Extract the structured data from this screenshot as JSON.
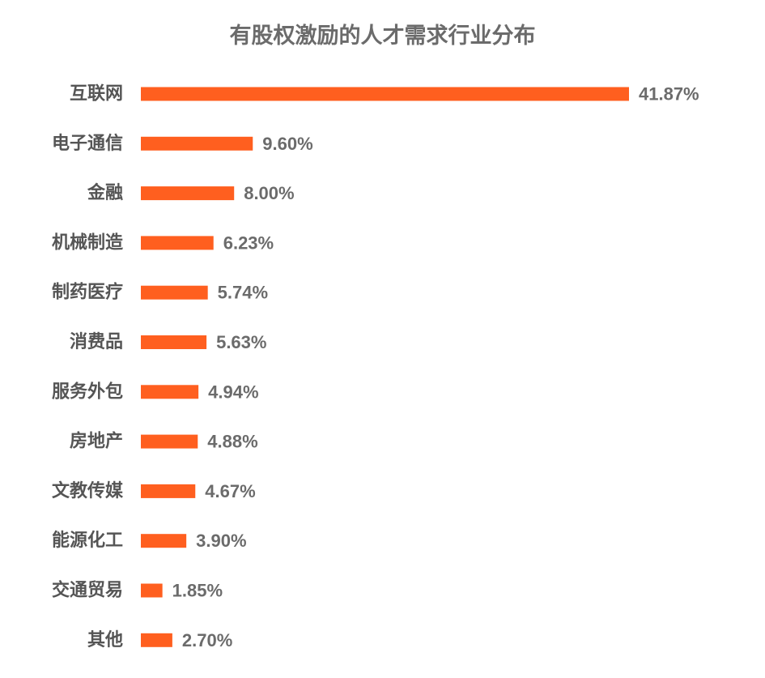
{
  "chart_data": {
    "type": "bar",
    "orientation": "horizontal",
    "title": "有股权激励的人才需求行业分布",
    "categories": [
      "互联网",
      "电子通信",
      "金融",
      "机械制造",
      "制药医疗",
      "消费品",
      "服务外包",
      "房地产",
      "文教传媒",
      "能源化工",
      "交通贸易",
      "其他"
    ],
    "values": [
      41.87,
      9.6,
      8.0,
      6.23,
      5.74,
      5.63,
      4.94,
      4.88,
      4.67,
      3.9,
      1.85,
      2.7
    ],
    "value_labels": [
      "41.87%",
      "9.60%",
      "8.00%",
      "6.23%",
      "5.74%",
      "5.63%",
      "4.94%",
      "4.88%",
      "4.67%",
      "3.90%",
      "1.85%",
      "2.70%"
    ],
    "unit": "%",
    "grid": false,
    "legend": "none",
    "bar_color": "#ff5f1f"
  }
}
